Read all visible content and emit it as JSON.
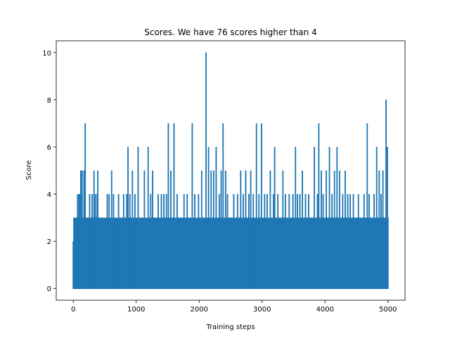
{
  "chart_data": {
    "type": "line",
    "title": "Scores. We have 76 scores higher than 4",
    "xlabel": "Training steps",
    "ylabel": "Score",
    "xlim": [
      -270,
      5270
    ],
    "ylim": [
      -0.5,
      10.5
    ],
    "xticks": [
      0,
      1000,
      2000,
      3000,
      4000,
      5000
    ],
    "yticks": [
      0,
      2,
      4,
      6,
      8,
      10
    ],
    "grid": false,
    "line_color": "#1f77b4",
    "series": [
      {
        "points": [
          [
            0,
            2
          ],
          [
            10,
            1
          ],
          [
            20,
            3
          ],
          [
            40,
            2
          ],
          [
            60,
            3
          ],
          [
            70,
            4
          ],
          [
            90,
            4
          ],
          [
            110,
            4
          ],
          [
            120,
            5
          ],
          [
            140,
            5
          ],
          [
            170,
            5
          ],
          [
            190,
            7
          ],
          [
            230,
            3
          ],
          [
            260,
            4
          ],
          [
            300,
            4
          ],
          [
            330,
            5
          ],
          [
            350,
            4
          ],
          [
            380,
            4
          ],
          [
            390,
            5
          ],
          [
            420,
            3
          ],
          [
            450,
            3
          ],
          [
            500,
            2
          ],
          [
            540,
            4
          ],
          [
            570,
            4
          ],
          [
            610,
            5
          ],
          [
            640,
            4
          ],
          [
            680,
            3
          ],
          [
            720,
            4
          ],
          [
            760,
            3
          ],
          [
            800,
            4
          ],
          [
            850,
            4
          ],
          [
            870,
            6
          ],
          [
            900,
            4
          ],
          [
            940,
            5
          ],
          [
            980,
            4
          ],
          [
            1030,
            6
          ],
          [
            1080,
            3
          ],
          [
            1130,
            5
          ],
          [
            1190,
            6
          ],
          [
            1230,
            4
          ],
          [
            1260,
            5
          ],
          [
            1300,
            3
          ],
          [
            1350,
            4
          ],
          [
            1400,
            4
          ],
          [
            1440,
            4
          ],
          [
            1480,
            4
          ],
          [
            1510,
            7
          ],
          [
            1550,
            5
          ],
          [
            1600,
            7
          ],
          [
            1650,
            4
          ],
          [
            1700,
            3
          ],
          [
            1760,
            4
          ],
          [
            1810,
            4
          ],
          [
            1850,
            3
          ],
          [
            1890,
            7
          ],
          [
            1930,
            4
          ],
          [
            1990,
            4
          ],
          [
            2040,
            5
          ],
          [
            2080,
            3
          ],
          [
            2110,
            10
          ],
          [
            2150,
            6
          ],
          [
            2190,
            5
          ],
          [
            2230,
            5
          ],
          [
            2270,
            6
          ],
          [
            2320,
            4
          ],
          [
            2350,
            5
          ],
          [
            2380,
            7
          ],
          [
            2420,
            5
          ],
          [
            2450,
            4
          ],
          [
            2500,
            3
          ],
          [
            2550,
            4
          ],
          [
            2610,
            4
          ],
          [
            2660,
            5
          ],
          [
            2700,
            4
          ],
          [
            2740,
            5
          ],
          [
            2790,
            4
          ],
          [
            2820,
            5
          ],
          [
            2860,
            4
          ],
          [
            2910,
            7
          ],
          [
            2950,
            4
          ],
          [
            2990,
            7
          ],
          [
            3040,
            4
          ],
          [
            3080,
            4
          ],
          [
            3130,
            5
          ],
          [
            3180,
            4
          ],
          [
            3200,
            6
          ],
          [
            3250,
            4
          ],
          [
            3280,
            3
          ],
          [
            3330,
            5
          ],
          [
            3370,
            4
          ],
          [
            3430,
            4
          ],
          [
            3490,
            4
          ],
          [
            3530,
            6
          ],
          [
            3560,
            4
          ],
          [
            3600,
            4
          ],
          [
            3640,
            5
          ],
          [
            3690,
            4
          ],
          [
            3740,
            4
          ],
          [
            3780,
            3
          ],
          [
            3830,
            6
          ],
          [
            3880,
            4
          ],
          [
            3900,
            7
          ],
          [
            3940,
            5
          ],
          [
            3970,
            4
          ],
          [
            4020,
            5
          ],
          [
            4070,
            6
          ],
          [
            4110,
            4
          ],
          [
            4150,
            5
          ],
          [
            4190,
            6
          ],
          [
            4230,
            5
          ],
          [
            4280,
            4
          ],
          [
            4320,
            5
          ],
          [
            4360,
            4
          ],
          [
            4400,
            4
          ],
          [
            4450,
            4
          ],
          [
            4490,
            3
          ],
          [
            4530,
            4
          ],
          [
            4580,
            3
          ],
          [
            4620,
            4
          ],
          [
            4670,
            7
          ],
          [
            4700,
            4
          ],
          [
            4740,
            3
          ],
          [
            4780,
            4
          ],
          [
            4820,
            6
          ],
          [
            4860,
            5
          ],
          [
            4890,
            4
          ],
          [
            4920,
            5
          ],
          [
            4950,
            3
          ],
          [
            4970,
            8
          ],
          [
            4990,
            6
          ],
          [
            5000,
            3
          ]
        ]
      }
    ]
  }
}
